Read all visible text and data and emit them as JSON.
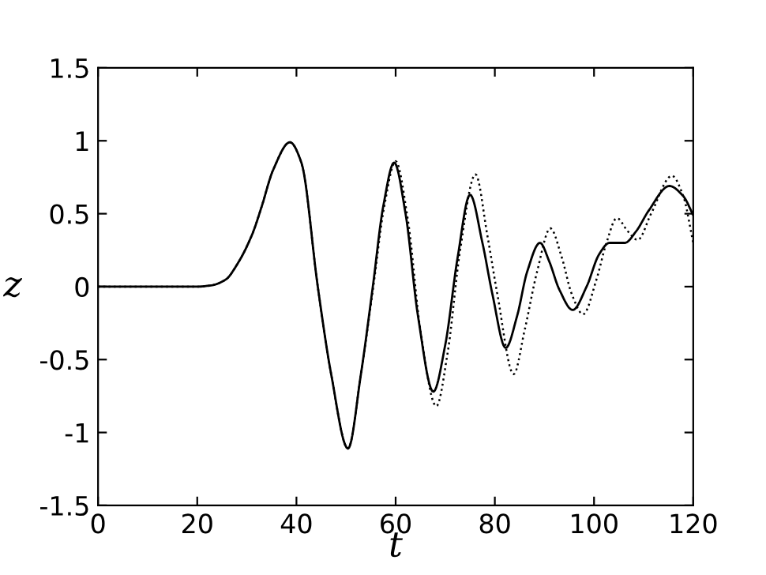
{
  "chart_data": {
    "type": "line",
    "xlabel": "t",
    "ylabel": "z",
    "xlim": [
      0,
      120
    ],
    "ylim": [
      -1.5,
      1.5
    ],
    "xticks": [
      0,
      20,
      40,
      60,
      80,
      100,
      120
    ],
    "yticks": [
      -1.5,
      -1,
      -0.5,
      0,
      0.5,
      1,
      1.5
    ],
    "grid": false,
    "legend": false,
    "marker": "none",
    "series": [
      {
        "color": "#000000",
        "line_style": "solid",
        "x": [
          0,
          10,
          20,
          23,
          25.8,
          28,
          31.1,
          33,
          35.3,
          38.7,
          41,
          44.3,
          47,
          50.4,
          53,
          55.4,
          57.5,
          59.7,
          62,
          64.5,
          67.6,
          70,
          72.5,
          75,
          77.5,
          79.5,
          82.2,
          84.5,
          86.5,
          89.1,
          91,
          93,
          95.7,
          98.5,
          101,
          103.1,
          106.2,
          108.5,
          111,
          115.2,
          118,
          120
        ],
        "values": [
          0,
          0,
          0,
          0.01,
          0.05,
          0.15,
          0.36,
          0.55,
          0.8,
          0.99,
          0.85,
          0,
          -0.6,
          -1.11,
          -0.6,
          0,
          0.55,
          0.85,
          0.5,
          -0.2,
          -0.72,
          -0.4,
          0.2,
          0.63,
          0.3,
          -0.05,
          -0.42,
          -0.2,
          0.1,
          0.3,
          0.17,
          -0.02,
          -0.16,
          0,
          0.22,
          0.3,
          0.3,
          0.38,
          0.52,
          0.69,
          0.62,
          0.49
        ]
      },
      {
        "color": "#000000",
        "line_style": "dotted",
        "x": [
          0,
          10,
          20,
          23,
          25.8,
          28,
          31.1,
          33,
          35.3,
          38.7,
          41,
          44.3,
          47,
          50.4,
          53,
          55.5,
          57.7,
          60,
          62.5,
          65,
          68.2,
          70.5,
          73,
          76.1,
          78.5,
          80.5,
          83.8,
          86,
          88.5,
          91.2,
          93.5,
          95.5,
          97.8,
          100.5,
          102.5,
          104.6,
          106.8,
          108.8,
          111.5,
          115.7,
          118,
          120
        ],
        "values": [
          0,
          0,
          0,
          0.01,
          0.05,
          0.15,
          0.36,
          0.55,
          0.8,
          0.99,
          0.85,
          0,
          -0.6,
          -1.11,
          -0.6,
          0,
          0.55,
          0.86,
          0.45,
          -0.3,
          -0.82,
          -0.45,
          0.25,
          0.77,
          0.35,
          -0.05,
          -0.6,
          -0.3,
          0.1,
          0.4,
          0.2,
          -0.05,
          -0.19,
          0.05,
          0.3,
          0.47,
          0.38,
          0.32,
          0.5,
          0.76,
          0.62,
          0.3
        ]
      }
    ]
  }
}
